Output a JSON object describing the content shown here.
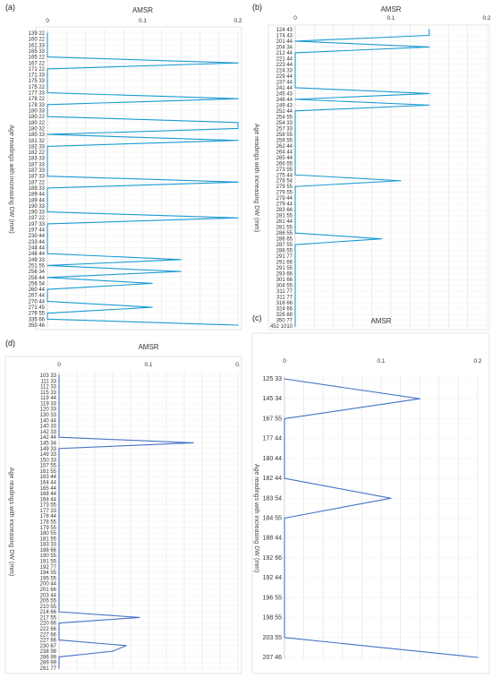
{
  "colors": {
    "series_a": "#1b9ad1",
    "series_b": "#4472c4"
  },
  "chart_data": [
    {
      "panel": "(a)",
      "type": "line",
      "orientation": "horizontal",
      "title": "AMSR",
      "ylabel": "Age readings with increasing DW (mm)",
      "xlim": [
        0,
        0.2
      ],
      "x_ticks": [
        "0",
        "0.1",
        "0.2"
      ],
      "grid": true,
      "categories": [
        "139 22",
        "160 22",
        "161 33",
        "165 33",
        "165 22",
        "167 22",
        "171 22",
        "171 33",
        "175 33",
        "175 22",
        "177 33",
        "178 22",
        "178 33",
        "180 33",
        "180 22",
        "180 22",
        "180 32",
        "180 33",
        "181 32",
        "182 33",
        "182 22",
        "183 33",
        "187 33",
        "187 33",
        "187 33",
        "187 22",
        "189 33",
        "189 44",
        "189 44",
        "190 33",
        "190 33",
        "197 22",
        "197 33",
        "197 44",
        "230 44",
        "233 44",
        "244 44",
        "246 44",
        "249 33",
        "251 55",
        "256 34",
        "256 44",
        "256 54",
        "260 44",
        "267 44",
        "270 44",
        "271 45",
        "276 55",
        "335 66",
        "350 46"
      ],
      "series": [
        {
          "values": [
            0,
            0,
            0,
            0,
            0,
            0.2,
            0,
            0,
            0,
            0,
            0,
            0.2,
            0,
            0,
            0,
            0.2,
            0.2,
            0,
            0.2,
            0,
            0,
            0,
            0,
            0,
            0,
            0.2,
            0,
            0,
            0,
            0,
            0,
            0.2,
            0,
            0,
            0,
            0,
            0,
            0,
            0.14,
            0,
            0.14,
            0,
            0.11,
            0,
            0,
            0,
            0.11,
            0,
            0,
            0.2
          ]
        }
      ]
    },
    {
      "panel": "(b)",
      "type": "line",
      "orientation": "horizontal",
      "title": "AMSR",
      "ylabel": "Age readings with increasing DW (mm)",
      "xlim": [
        0,
        0.2
      ],
      "x_ticks": [
        "0",
        "0.1",
        "0.2"
      ],
      "grid": true,
      "categories": [
        "124 43",
        "174 43",
        "201 44",
        "204 34",
        "212 44",
        "221 44",
        "223 44",
        "224 33",
        "229 44",
        "237 44",
        "241 44",
        "245 43",
        "248 44",
        "249 43",
        "252 44",
        "254 55",
        "254 33",
        "257 33",
        "258 55",
        "259 55",
        "262 44",
        "264 44",
        "265 44",
        "266 55",
        "273 55",
        "275 44",
        "278 54",
        "279 55",
        "279 55",
        "279 44",
        "279 44",
        "283 66",
        "281 55",
        "281 44",
        "281 55",
        "286 55",
        "286 65",
        "287 55",
        "288 55",
        "291 77",
        "291 66",
        "291 55",
        "293 66",
        "301 66",
        "304 55",
        "311 77",
        "311 77",
        "316 66",
        "324 66",
        "326 88",
        "350 77",
        "452 1010"
      ],
      "series": [
        {
          "values": [
            0.14,
            0.14,
            0,
            0.14,
            0,
            0,
            0,
            0,
            0,
            0,
            0,
            0.14,
            0,
            0.14,
            0,
            0,
            0,
            0,
            0,
            0,
            0,
            0,
            0,
            0,
            0,
            0,
            0.11,
            0,
            0,
            0,
            0,
            0,
            0,
            0,
            0,
            0,
            0.09,
            0,
            0,
            0,
            0,
            0,
            0,
            0,
            0,
            0,
            0,
            0,
            0,
            0,
            0,
            0
          ]
        }
      ]
    },
    {
      "panel": "(d)",
      "type": "line",
      "orientation": "horizontal",
      "title": "AMSR",
      "ylabel": "Age readings with increasing DW (mm)",
      "xlim": [
        0,
        0.2
      ],
      "x_ticks": [
        "0",
        "0.1",
        "0."
      ],
      "grid": true,
      "categories": [
        "103 33",
        "111 33",
        "112 33",
        "115 33",
        "119 44",
        "119 33",
        "120 33",
        "130 33",
        "140 44",
        "140 33",
        "142 33",
        "142 44",
        "145 34",
        "149 33",
        "149 33",
        "150 33",
        "157 55",
        "161 55",
        "163 44",
        "164 44",
        "165 44",
        "168 44",
        "168 44",
        "173 55",
        "177 33",
        "178 44",
        "178 55",
        "179 55",
        "180 55",
        "181 55",
        "183 33",
        "188 66",
        "190 55",
        "191 55",
        "192 77",
        "194 55",
        "195 55",
        "200 44",
        "201 66",
        "203 44",
        "205 55",
        "210 55",
        "214 66",
        "217 55",
        "220 66",
        "222 66",
        "227 66",
        "227 66",
        "230 67",
        "238 98",
        "286 99",
        "289 99",
        "291 77"
      ],
      "series": [
        {
          "values": [
            0,
            0,
            0,
            0,
            0,
            0,
            0,
            0,
            0,
            0,
            0,
            0,
            0.15,
            0,
            0,
            0,
            0,
            0,
            0,
            0,
            0,
            0,
            0,
            0,
            0,
            0,
            0,
            0,
            0,
            0,
            0,
            0,
            0,
            0,
            0,
            0,
            0,
            0,
            0,
            0,
            0,
            0,
            0,
            0.09,
            0,
            0,
            0,
            0,
            0.075,
            0.06,
            0,
            0,
            0
          ]
        }
      ]
    },
    {
      "panel": "(c)",
      "type": "line",
      "orientation": "horizontal",
      "title": "AMSR",
      "ylabel": "Age readings with increasing DW (mm)",
      "xlim": [
        0,
        0.2
      ],
      "x_ticks": [
        "0",
        "0.1",
        "0.2"
      ],
      "grid": true,
      "categories": [
        "125 33",
        "145 34",
        "167 55",
        "177 44",
        "180 44",
        "182 44",
        "183 54",
        "184 55",
        "188 44",
        "192 66",
        "192 44",
        "196 55",
        "198 55",
        "203 55",
        "207 46"
      ],
      "series": [
        {
          "values": [
            0,
            0.14,
            0,
            0,
            0,
            0,
            0.11,
            0,
            0,
            0,
            0,
            0,
            0,
            0,
            0.2
          ]
        }
      ]
    }
  ]
}
